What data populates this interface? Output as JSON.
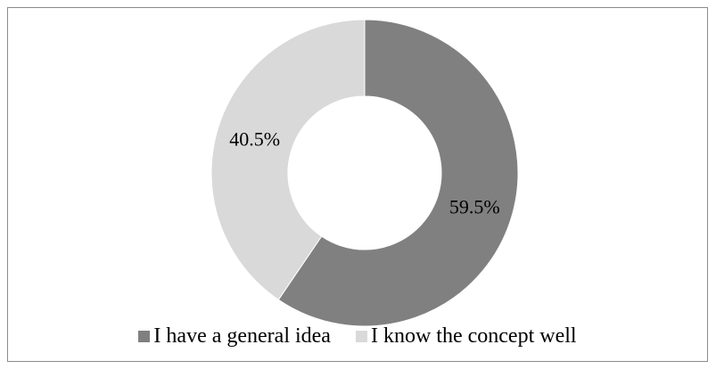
{
  "chart_data": {
    "type": "pie",
    "variant": "doughnut",
    "slices": [
      {
        "label": "I have a general idea",
        "value": 59.5,
        "data_label": "59.5%",
        "color": "#808080"
      },
      {
        "label": "I know the concept well",
        "value": 40.5,
        "data_label": "40.5%",
        "color": "#d9d9d9"
      }
    ],
    "legend_position": "bottom",
    "start_angle": "top (12 o'clock), clockwise"
  }
}
